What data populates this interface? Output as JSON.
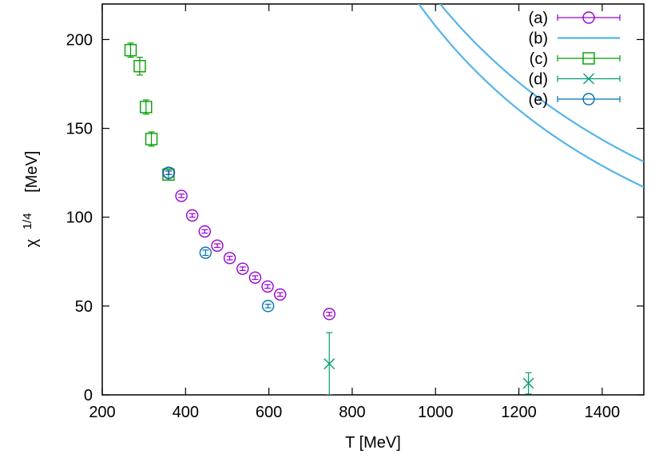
{
  "chart_data": {
    "type": "scatter",
    "xlabel": "T [MeV]",
    "ylabel_main": "χ",
    "ylabel_sup": "1/4",
    "ylabel_unit": "[MeV]",
    "xlim": [
      200,
      1500
    ],
    "ylim": [
      0,
      220
    ],
    "xticks": [
      200,
      400,
      600,
      800,
      1000,
      1200,
      1400
    ],
    "yticks": [
      0,
      50,
      100,
      150,
      200
    ],
    "grid": false,
    "legend_position": "top-right",
    "series": [
      {
        "name": "(a)",
        "marker": "circle",
        "color": "#9400d3",
        "points": [
          {
            "x": 360,
            "y": 125,
            "err": 1
          },
          {
            "x": 390,
            "y": 112,
            "err": 1
          },
          {
            "x": 416,
            "y": 101,
            "err": 1
          },
          {
            "x": 446,
            "y": 92,
            "err": 1
          },
          {
            "x": 476,
            "y": 84,
            "err": 1
          },
          {
            "x": 506,
            "y": 77,
            "err": 1
          },
          {
            "x": 537,
            "y": 71,
            "err": 1
          },
          {
            "x": 567,
            "y": 66,
            "err": 1
          },
          {
            "x": 597,
            "y": 61,
            "err": 1
          },
          {
            "x": 627,
            "y": 56.5,
            "err": 1
          },
          {
            "x": 745,
            "y": 45.5,
            "err": 1
          }
        ]
      },
      {
        "name": "(b)",
        "type": "line",
        "color": "#56b4e9",
        "curves": [
          {
            "coef": 3650000,
            "power": -1.415,
            "x_start": 255
          },
          {
            "coef": 1900000,
            "power": -1.31,
            "x_start": 248
          }
        ]
      },
      {
        "name": "(c)",
        "marker": "square",
        "color": "#009e00",
        "points": [
          {
            "x": 268,
            "y": 194,
            "err": 4
          },
          {
            "x": 290,
            "y": 185,
            "err": 5
          },
          {
            "x": 305,
            "y": 162,
            "err": 4
          },
          {
            "x": 318,
            "y": 144,
            "err": 4
          },
          {
            "x": 359,
            "y": 124,
            "err": 3
          }
        ]
      },
      {
        "name": "(d)",
        "marker": "cross",
        "color": "#009e73",
        "points": [
          {
            "x": 745,
            "y": 17.5,
            "err": 17.5
          },
          {
            "x": 1223,
            "y": 6.5,
            "err": 6
          }
        ]
      },
      {
        "name": "(e)",
        "marker": "circle",
        "color": "#0072b2",
        "points": [
          {
            "x": 359,
            "y": 125,
            "err": 1
          },
          {
            "x": 448,
            "y": 80,
            "err": 1.5
          },
          {
            "x": 598,
            "y": 50,
            "err": 1
          }
        ]
      }
    ]
  }
}
